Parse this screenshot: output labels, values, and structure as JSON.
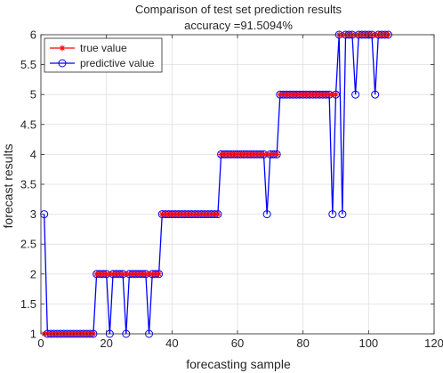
{
  "chart_data": {
    "type": "line",
    "title": "Comparison of test set prediction results",
    "subtitle": "accuracy =91.5094%",
    "xlabel": "forecasting sample",
    "ylabel": "forecast results",
    "xlim": [
      0,
      120
    ],
    "ylim": [
      1,
      6
    ],
    "xticks": [
      "0",
      "20",
      "40",
      "60",
      "80",
      "100",
      "120"
    ],
    "yticks": [
      "1",
      "1.5",
      "2",
      "2.5",
      "3",
      "3.5",
      "4",
      "4.5",
      "5",
      "5.5",
      "6"
    ],
    "grid": true,
    "legend_position": "top-left",
    "series": [
      {
        "name": "true value",
        "color": "#ff0000",
        "marker": "asterisk",
        "x": [
          1,
          2,
          3,
          4,
          5,
          6,
          7,
          8,
          9,
          10,
          11,
          12,
          13,
          14,
          15,
          16,
          17,
          18,
          19,
          20,
          21,
          22,
          23,
          24,
          25,
          26,
          27,
          28,
          29,
          30,
          31,
          32,
          33,
          34,
          35,
          36,
          37,
          38,
          39,
          40,
          41,
          42,
          43,
          44,
          45,
          46,
          47,
          48,
          49,
          50,
          51,
          52,
          53,
          54,
          55,
          56,
          57,
          58,
          59,
          60,
          61,
          62,
          63,
          64,
          65,
          66,
          67,
          68,
          69,
          70,
          71,
          72,
          73,
          74,
          75,
          76,
          77,
          78,
          79,
          80,
          81,
          82,
          83,
          84,
          85,
          86,
          87,
          88,
          89,
          90,
          91,
          92,
          93,
          94,
          95,
          96,
          97,
          98,
          99,
          100,
          101,
          102,
          103,
          104,
          105,
          106
        ],
        "y": [
          1,
          1,
          1,
          1,
          1,
          1,
          1,
          1,
          1,
          1,
          1,
          1,
          1,
          1,
          1,
          1,
          2,
          2,
          2,
          2,
          2,
          2,
          2,
          2,
          2,
          2,
          2,
          2,
          2,
          2,
          2,
          2,
          2,
          2,
          2,
          2,
          3,
          3,
          3,
          3,
          3,
          3,
          3,
          3,
          3,
          3,
          3,
          3,
          3,
          3,
          3,
          3,
          3,
          3,
          4,
          4,
          4,
          4,
          4,
          4,
          4,
          4,
          4,
          4,
          4,
          4,
          4,
          4,
          4,
          4,
          4,
          4,
          5,
          5,
          5,
          5,
          5,
          5,
          5,
          5,
          5,
          5,
          5,
          5,
          5,
          5,
          5,
          5,
          5,
          5,
          6,
          6,
          6,
          6,
          6,
          6,
          6,
          6,
          6,
          6,
          6,
          6,
          6,
          6,
          6,
          6
        ]
      },
      {
        "name": "predictive value",
        "color": "#0000ff",
        "marker": "circle",
        "x": [
          1,
          2,
          3,
          4,
          5,
          6,
          7,
          8,
          9,
          10,
          11,
          12,
          13,
          14,
          15,
          16,
          17,
          18,
          19,
          20,
          21,
          22,
          23,
          24,
          25,
          26,
          27,
          28,
          29,
          30,
          31,
          32,
          33,
          34,
          35,
          36,
          37,
          38,
          39,
          40,
          41,
          42,
          43,
          44,
          45,
          46,
          47,
          48,
          49,
          50,
          51,
          52,
          53,
          54,
          55,
          56,
          57,
          58,
          59,
          60,
          61,
          62,
          63,
          64,
          65,
          66,
          67,
          68,
          69,
          70,
          71,
          72,
          73,
          74,
          75,
          76,
          77,
          78,
          79,
          80,
          81,
          82,
          83,
          84,
          85,
          86,
          87,
          88,
          89,
          90,
          91,
          92,
          93,
          94,
          95,
          96,
          97,
          98,
          99,
          100,
          101,
          102,
          103,
          104,
          105,
          106
        ],
        "y": [
          3,
          1,
          1,
          1,
          1,
          1,
          1,
          1,
          1,
          1,
          1,
          1,
          1,
          1,
          1,
          1,
          2,
          2,
          2,
          2,
          1,
          2,
          2,
          2,
          2,
          1,
          2,
          2,
          2,
          2,
          2,
          2,
          1,
          2,
          2,
          2,
          3,
          3,
          3,
          3,
          3,
          3,
          3,
          3,
          3,
          3,
          3,
          3,
          3,
          3,
          3,
          3,
          3,
          3,
          4,
          4,
          4,
          4,
          4,
          4,
          4,
          4,
          4,
          4,
          4,
          4,
          4,
          4,
          3,
          4,
          4,
          4,
          5,
          5,
          5,
          5,
          5,
          5,
          5,
          5,
          5,
          5,
          5,
          5,
          5,
          5,
          5,
          5,
          3,
          5,
          6,
          3,
          6,
          6,
          6,
          5,
          6,
          6,
          6,
          6,
          6,
          5,
          6,
          6,
          6,
          6
        ]
      }
    ]
  }
}
